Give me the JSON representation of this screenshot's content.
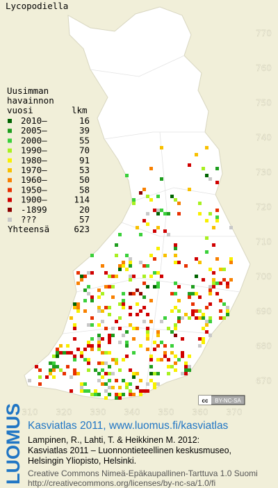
{
  "title": "Lycopodiella",
  "legend": {
    "heading": [
      "Uusimman",
      "havainnon",
      "vuosi"
    ],
    "count_heading": "lkm",
    "items": [
      {
        "label": "2010–",
        "count": 16,
        "color": "#006400"
      },
      {
        "label": "2005–",
        "count": 39,
        "color": "#1e9e1e"
      },
      {
        "label": "2000–",
        "count": 55,
        "color": "#3ad03a"
      },
      {
        "label": "1990–",
        "count": 70,
        "color": "#a8f020"
      },
      {
        "label": "1980–",
        "count": 91,
        "color": "#f8f000"
      },
      {
        "label": "1970–",
        "count": 53,
        "color": "#f8c000"
      },
      {
        "label": "1960–",
        "count": 50,
        "color": "#f88000"
      },
      {
        "label": "1950–",
        "count": 58,
        "color": "#e83000"
      },
      {
        "label": "1900–",
        "count": 114,
        "color": "#d00000"
      },
      {
        "label": "-1899",
        "count": 20,
        "color": "#8b0000"
      },
      {
        "label": "???",
        "count": 57,
        "color": "#c8c8c8"
      }
    ],
    "total_label": "Yhteensä",
    "total": 623
  },
  "axes": {
    "y_labels": [
      "770",
      "760",
      "750",
      "740",
      "730",
      "720",
      "710",
      "700",
      "690",
      "680",
      "670"
    ],
    "x_labels": [
      "310",
      "320",
      "330",
      "340",
      "350",
      "360",
      "370"
    ]
  },
  "badge": {
    "cc": "cc",
    "license": "BY-NC-SA"
  },
  "footer": {
    "logo": "LUOMUS",
    "link": "Kasviatlas 2011, www.luomus.fi/kasviatlas",
    "citation": [
      "Lampinen, R., Lahti, T. & Heikkinen M. 2012:",
      "Kasviatlas 2011 – Luonnontieteellinen keskusmuseo,",
      "Helsingin Yliopisto, Helsinki."
    ],
    "license": [
      "Creative Commons Nimeä-Epäkaupallinen-Tarttuva 1.0 Suomi",
      "http://creativecommons.org/licenses/by-nc-sa/1.0/fi"
    ]
  }
}
